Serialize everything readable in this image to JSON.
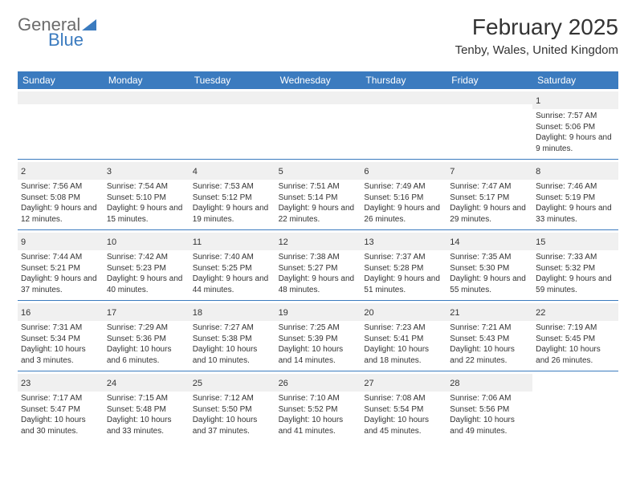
{
  "logo": {
    "text_general": "General",
    "text_blue": "Blue"
  },
  "header": {
    "month_title": "February 2025",
    "location": "Tenby, Wales, United Kingdom"
  },
  "colors": {
    "header_band": "#3b7bbf",
    "header_text": "#ffffff",
    "strip_bg": "#f0f0f0",
    "text": "#333333",
    "logo_gray": "#6b6b6b",
    "logo_blue": "#3b7bbf"
  },
  "day_names": [
    "Sunday",
    "Monday",
    "Tuesday",
    "Wednesday",
    "Thursday",
    "Friday",
    "Saturday"
  ],
  "weeks": [
    [
      null,
      null,
      null,
      null,
      null,
      null,
      {
        "d": "1",
        "sr": "7:57 AM",
        "ss": "5:06 PM",
        "dl": "9 hours and 9 minutes."
      }
    ],
    [
      {
        "d": "2",
        "sr": "7:56 AM",
        "ss": "5:08 PM",
        "dl": "9 hours and 12 minutes."
      },
      {
        "d": "3",
        "sr": "7:54 AM",
        "ss": "5:10 PM",
        "dl": "9 hours and 15 minutes."
      },
      {
        "d": "4",
        "sr": "7:53 AM",
        "ss": "5:12 PM",
        "dl": "9 hours and 19 minutes."
      },
      {
        "d": "5",
        "sr": "7:51 AM",
        "ss": "5:14 PM",
        "dl": "9 hours and 22 minutes."
      },
      {
        "d": "6",
        "sr": "7:49 AM",
        "ss": "5:16 PM",
        "dl": "9 hours and 26 minutes."
      },
      {
        "d": "7",
        "sr": "7:47 AM",
        "ss": "5:17 PM",
        "dl": "9 hours and 29 minutes."
      },
      {
        "d": "8",
        "sr": "7:46 AM",
        "ss": "5:19 PM",
        "dl": "9 hours and 33 minutes."
      }
    ],
    [
      {
        "d": "9",
        "sr": "7:44 AM",
        "ss": "5:21 PM",
        "dl": "9 hours and 37 minutes."
      },
      {
        "d": "10",
        "sr": "7:42 AM",
        "ss": "5:23 PM",
        "dl": "9 hours and 40 minutes."
      },
      {
        "d": "11",
        "sr": "7:40 AM",
        "ss": "5:25 PM",
        "dl": "9 hours and 44 minutes."
      },
      {
        "d": "12",
        "sr": "7:38 AM",
        "ss": "5:27 PM",
        "dl": "9 hours and 48 minutes."
      },
      {
        "d": "13",
        "sr": "7:37 AM",
        "ss": "5:28 PM",
        "dl": "9 hours and 51 minutes."
      },
      {
        "d": "14",
        "sr": "7:35 AM",
        "ss": "5:30 PM",
        "dl": "9 hours and 55 minutes."
      },
      {
        "d": "15",
        "sr": "7:33 AM",
        "ss": "5:32 PM",
        "dl": "9 hours and 59 minutes."
      }
    ],
    [
      {
        "d": "16",
        "sr": "7:31 AM",
        "ss": "5:34 PM",
        "dl": "10 hours and 3 minutes."
      },
      {
        "d": "17",
        "sr": "7:29 AM",
        "ss": "5:36 PM",
        "dl": "10 hours and 6 minutes."
      },
      {
        "d": "18",
        "sr": "7:27 AM",
        "ss": "5:38 PM",
        "dl": "10 hours and 10 minutes."
      },
      {
        "d": "19",
        "sr": "7:25 AM",
        "ss": "5:39 PM",
        "dl": "10 hours and 14 minutes."
      },
      {
        "d": "20",
        "sr": "7:23 AM",
        "ss": "5:41 PM",
        "dl": "10 hours and 18 minutes."
      },
      {
        "d": "21",
        "sr": "7:21 AM",
        "ss": "5:43 PM",
        "dl": "10 hours and 22 minutes."
      },
      {
        "d": "22",
        "sr": "7:19 AM",
        "ss": "5:45 PM",
        "dl": "10 hours and 26 minutes."
      }
    ],
    [
      {
        "d": "23",
        "sr": "7:17 AM",
        "ss": "5:47 PM",
        "dl": "10 hours and 30 minutes."
      },
      {
        "d": "24",
        "sr": "7:15 AM",
        "ss": "5:48 PM",
        "dl": "10 hours and 33 minutes."
      },
      {
        "d": "25",
        "sr": "7:12 AM",
        "ss": "5:50 PM",
        "dl": "10 hours and 37 minutes."
      },
      {
        "d": "26",
        "sr": "7:10 AM",
        "ss": "5:52 PM",
        "dl": "10 hours and 41 minutes."
      },
      {
        "d": "27",
        "sr": "7:08 AM",
        "ss": "5:54 PM",
        "dl": "10 hours and 45 minutes."
      },
      {
        "d": "28",
        "sr": "7:06 AM",
        "ss": "5:56 PM",
        "dl": "10 hours and 49 minutes."
      },
      null
    ]
  ],
  "labels": {
    "sunrise": "Sunrise:",
    "sunset": "Sunset:",
    "daylight": "Daylight:"
  }
}
